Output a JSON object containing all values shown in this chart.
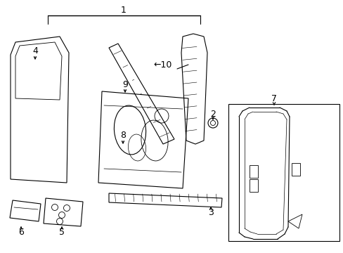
{
  "bg_color": "#ffffff",
  "lc": "#000000",
  "lw": 0.8,
  "fs": 9,
  "fig_w": 4.89,
  "fig_h": 3.6,
  "dpi": 100
}
